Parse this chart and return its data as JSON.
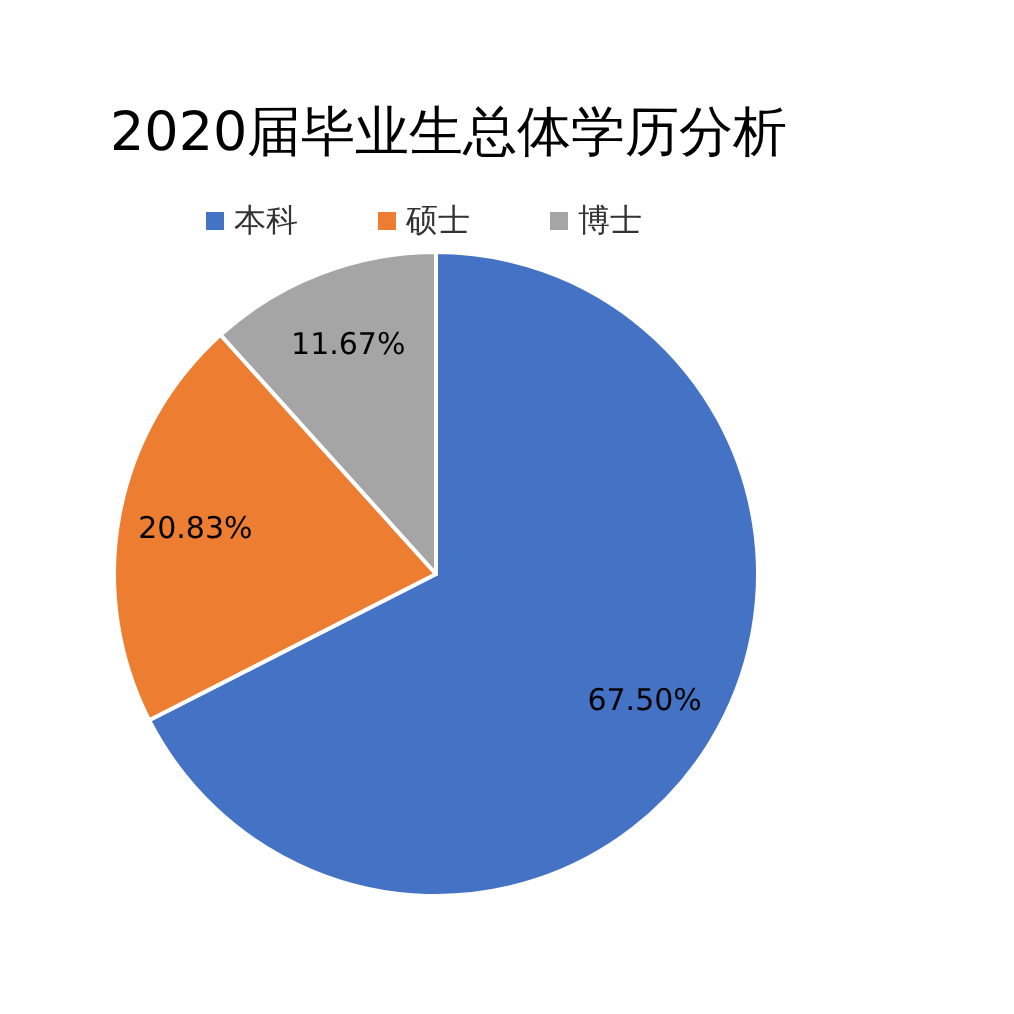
{
  "chart_data": {
    "type": "pie",
    "title": "2020届毕业生总体学历分析",
    "categories": [
      "本科",
      "硕士",
      "博士"
    ],
    "values": [
      67.5,
      20.83,
      11.67
    ],
    "value_labels": [
      "67.50%",
      "20.83%",
      "11.67%"
    ],
    "colors": [
      "#4472c4",
      "#ed7d31",
      "#a5a5a5"
    ],
    "legend": "top"
  }
}
